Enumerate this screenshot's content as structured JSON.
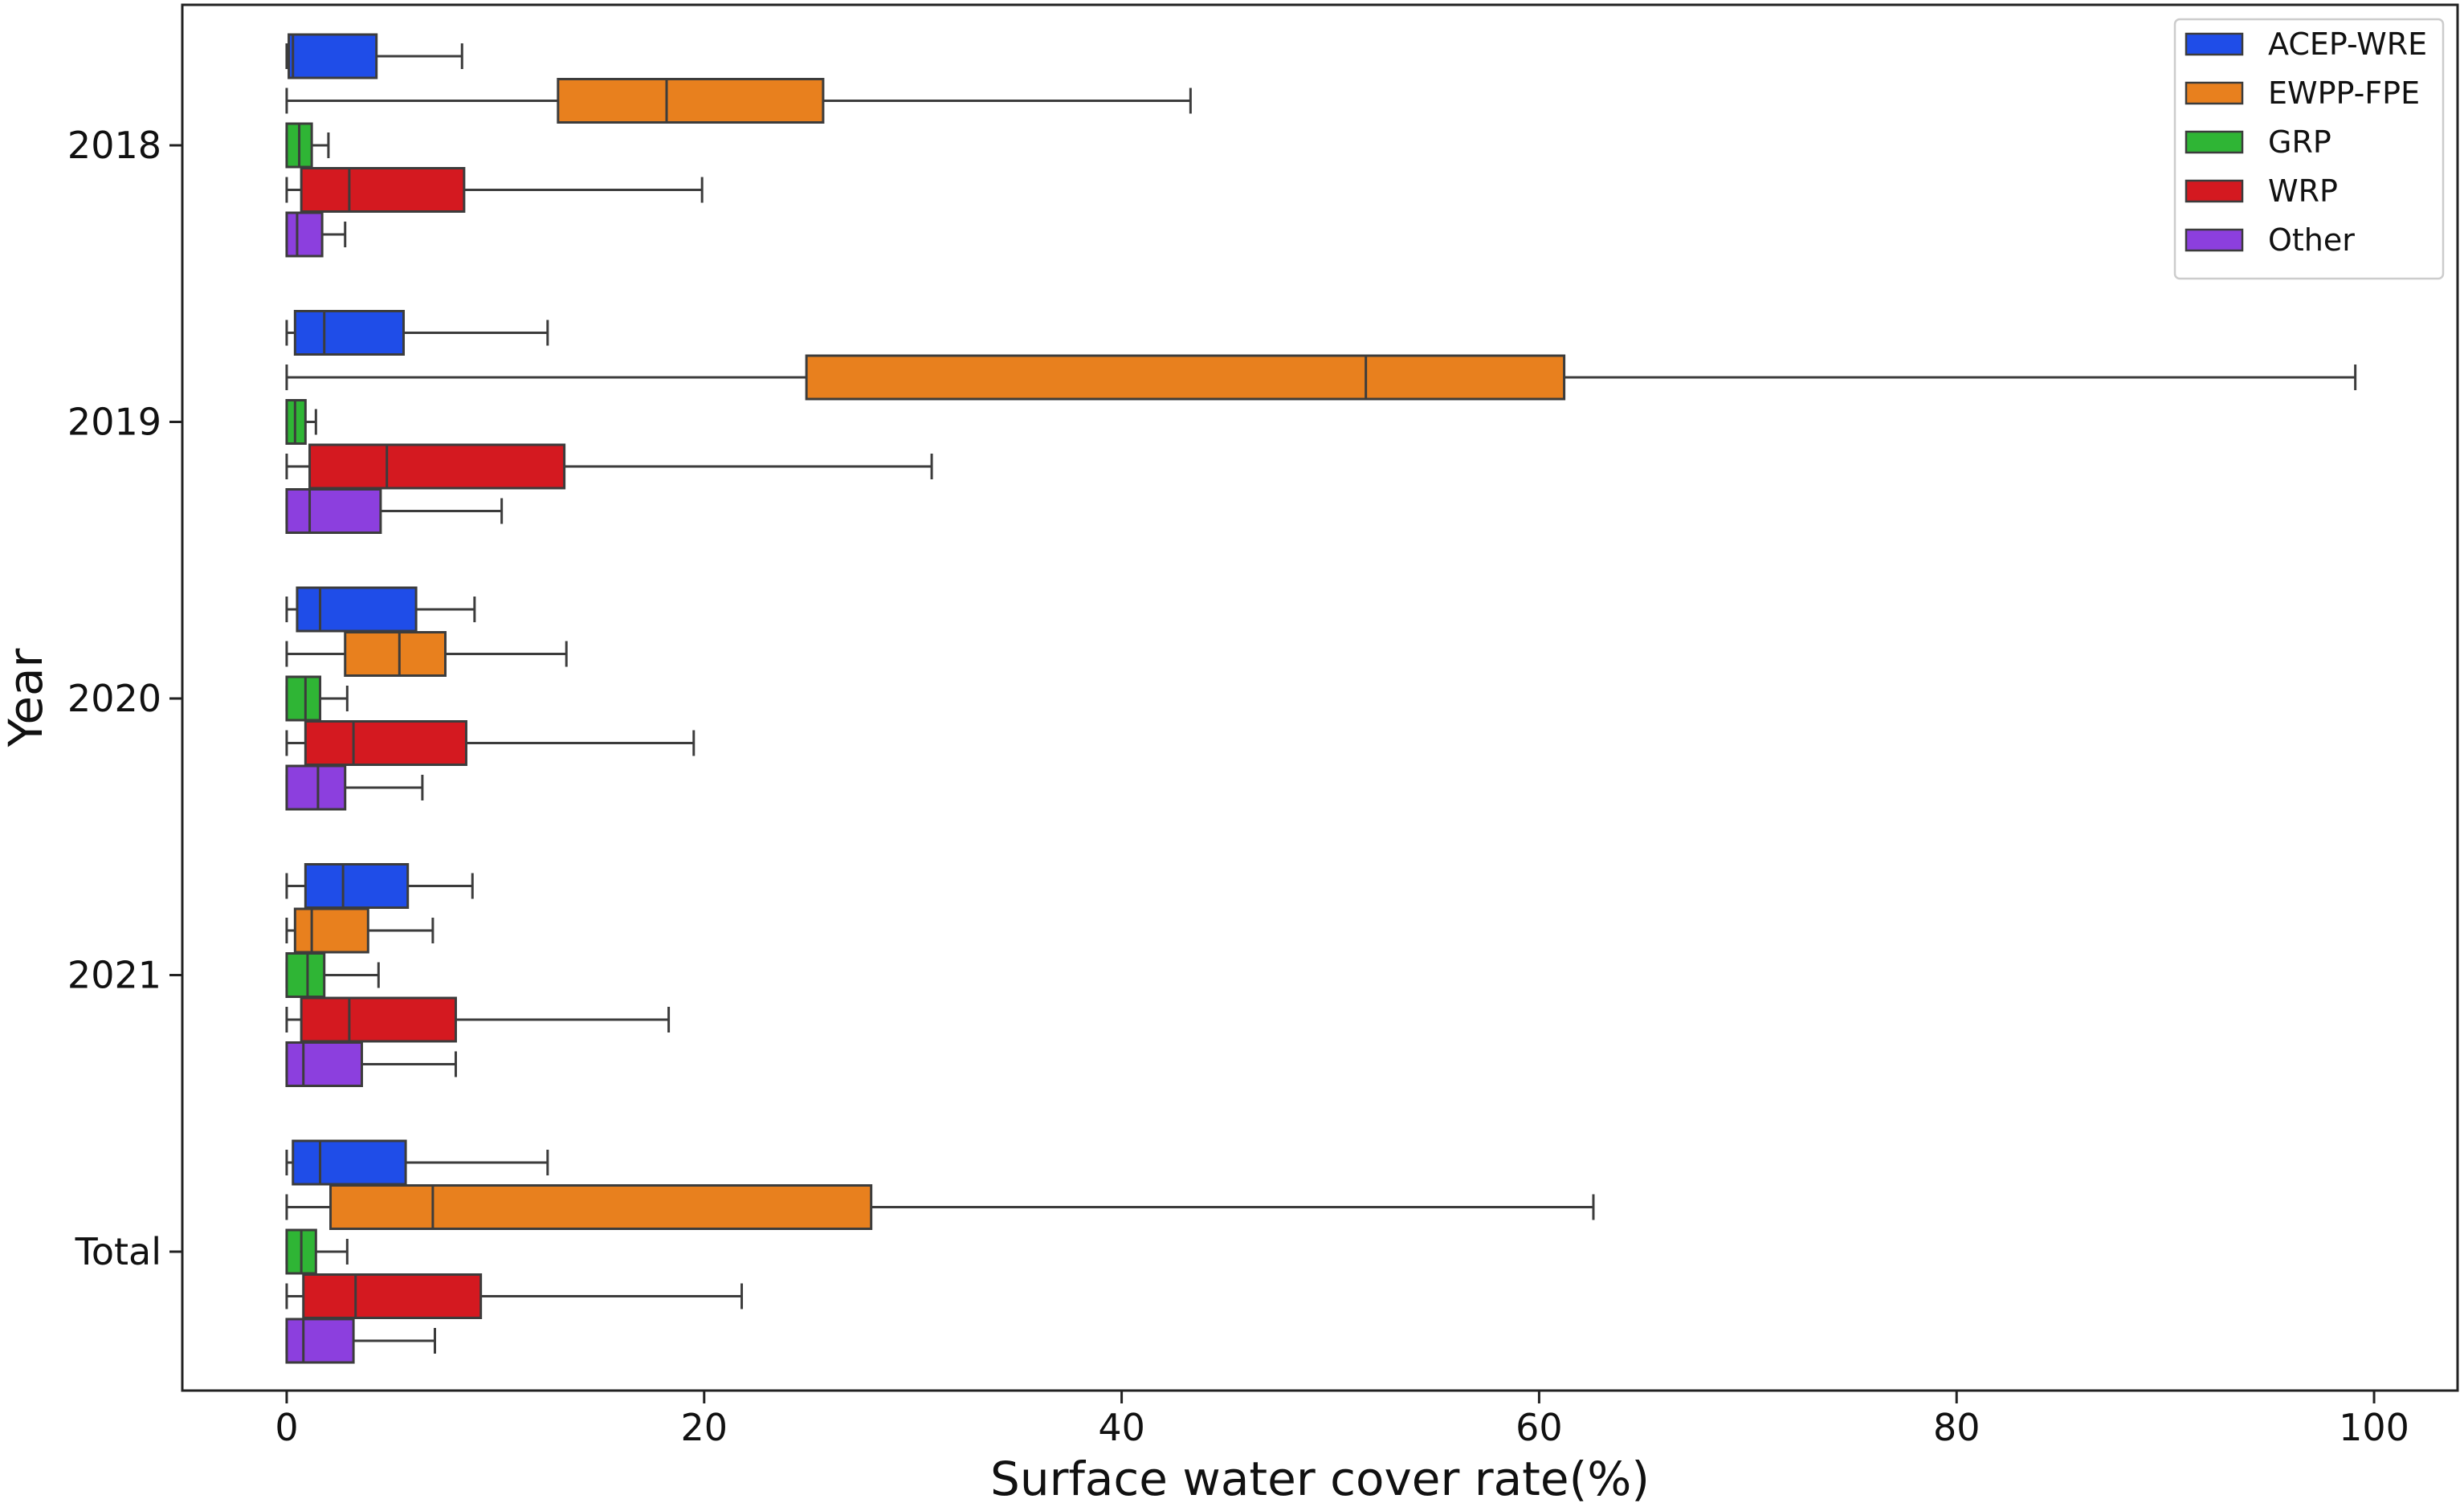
{
  "chart_data": {
    "type": "boxplot",
    "orientation": "horizontal",
    "xlabel": "Surface water cover rate(%)",
    "ylabel": "Year",
    "xlim": [
      -5,
      104
    ],
    "xticks": [
      0,
      20,
      40,
      60,
      80,
      100
    ],
    "categories": [
      "2018",
      "2019",
      "2020",
      "2021",
      "Total"
    ],
    "legend": {
      "position": "top-right"
    },
    "series": [
      {
        "name": "ACEP-WRE",
        "color": "#1f4de8",
        "boxes": [
          {
            "whislo": 0,
            "q1": 0.1,
            "med": 0.3,
            "q3": 4.3,
            "whishi": 8.4
          },
          {
            "whislo": 0,
            "q1": 0.4,
            "med": 1.8,
            "q3": 5.6,
            "whishi": 12.5
          },
          {
            "whislo": 0,
            "q1": 0.5,
            "med": 1.6,
            "q3": 6.2,
            "whishi": 9.0
          },
          {
            "whislo": 0,
            "q1": 0.9,
            "med": 2.7,
            "q3": 5.8,
            "whishi": 8.9
          },
          {
            "whislo": 0,
            "q1": 0.3,
            "med": 1.6,
            "q3": 5.7,
            "whishi": 12.5
          }
        ]
      },
      {
        "name": "EWPP-FPE",
        "color": "#e8801e",
        "boxes": [
          {
            "whislo": 0,
            "q1": 13.0,
            "med": 18.2,
            "q3": 25.7,
            "whishi": 43.3
          },
          {
            "whislo": 0,
            "q1": 24.9,
            "med": 51.7,
            "q3": 61.2,
            "whishi": 99.1
          },
          {
            "whislo": 0,
            "q1": 2.8,
            "med": 5.4,
            "q3": 7.6,
            "whishi": 13.4
          },
          {
            "whislo": 0,
            "q1": 0.4,
            "med": 1.2,
            "q3": 3.9,
            "whishi": 7.0
          },
          {
            "whislo": 0,
            "q1": 2.1,
            "med": 7.0,
            "q3": 28.0,
            "whishi": 62.6
          }
        ]
      },
      {
        "name": "GRP",
        "color": "#2fb535",
        "boxes": [
          {
            "whislo": 0,
            "q1": 0.0,
            "med": 0.6,
            "q3": 1.2,
            "whishi": 2.0
          },
          {
            "whislo": 0,
            "q1": 0.0,
            "med": 0.4,
            "q3": 0.9,
            "whishi": 1.4
          },
          {
            "whislo": 0,
            "q1": 0.0,
            "med": 0.9,
            "q3": 1.6,
            "whishi": 2.9
          },
          {
            "whislo": 0,
            "q1": 0.0,
            "med": 1.0,
            "q3": 1.8,
            "whishi": 4.4
          },
          {
            "whislo": 0,
            "q1": 0.0,
            "med": 0.7,
            "q3": 1.4,
            "whishi": 2.9
          }
        ]
      },
      {
        "name": "WRP",
        "color": "#d41920",
        "boxes": [
          {
            "whislo": 0,
            "q1": 0.7,
            "med": 3.0,
            "q3": 8.5,
            "whishi": 19.9
          },
          {
            "whislo": 0,
            "q1": 1.1,
            "med": 4.8,
            "q3": 13.3,
            "whishi": 30.9
          },
          {
            "whislo": 0,
            "q1": 0.9,
            "med": 3.2,
            "q3": 8.6,
            "whishi": 19.5
          },
          {
            "whislo": 0,
            "q1": 0.7,
            "med": 3.0,
            "q3": 8.1,
            "whishi": 18.3
          },
          {
            "whislo": 0,
            "q1": 0.8,
            "med": 3.3,
            "q3": 9.3,
            "whishi": 21.8
          }
        ]
      },
      {
        "name": "Other",
        "color": "#8c3fde",
        "boxes": [
          {
            "whislo": 0,
            "q1": 0.0,
            "med": 0.5,
            "q3": 1.7,
            "whishi": 2.8
          },
          {
            "whislo": 0,
            "q1": 0.0,
            "med": 1.1,
            "q3": 4.5,
            "whishi": 10.3
          },
          {
            "whislo": 0,
            "q1": 0.0,
            "med": 1.5,
            "q3": 2.8,
            "whishi": 6.5
          },
          {
            "whislo": 0,
            "q1": 0.0,
            "med": 0.8,
            "q3": 3.6,
            "whishi": 8.1
          },
          {
            "whislo": 0,
            "q1": 0.0,
            "med": 0.8,
            "q3": 3.2,
            "whishi": 7.1
          }
        ]
      }
    ]
  }
}
